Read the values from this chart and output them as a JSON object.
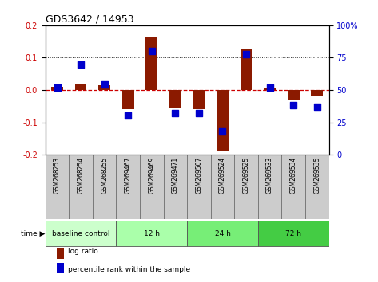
{
  "title": "GDS3642 / 14953",
  "samples": [
    "GSM268253",
    "GSM268254",
    "GSM268255",
    "GSM269467",
    "GSM269469",
    "GSM269471",
    "GSM269507",
    "GSM269524",
    "GSM269525",
    "GSM269533",
    "GSM269534",
    "GSM269535"
  ],
  "log_ratio": [
    0.01,
    0.02,
    0.015,
    -0.06,
    0.165,
    -0.055,
    -0.06,
    -0.19,
    0.125,
    0.005,
    -0.03,
    -0.02
  ],
  "percentile": [
    52,
    70,
    54,
    30,
    80,
    32,
    32,
    18,
    78,
    52,
    38,
    37
  ],
  "bar_color": "#8B1A00",
  "dot_color": "#0000CC",
  "ylim_left": [
    -0.2,
    0.2
  ],
  "ylim_right": [
    0,
    100
  ],
  "yticks_left": [
    -0.2,
    -0.1,
    0.0,
    0.1,
    0.2
  ],
  "yticks_right": [
    0,
    25,
    50,
    75,
    100
  ],
  "ytick_labels_right": [
    "0",
    "25",
    "50",
    "75",
    "100%"
  ],
  "hline_color": "#CC0000",
  "dotted_line_color": "#333333",
  "groups": [
    {
      "label": "baseline control",
      "start": 0,
      "end": 3,
      "color": "#ccffcc"
    },
    {
      "label": "12 h",
      "start": 3,
      "end": 6,
      "color": "#aaffaa"
    },
    {
      "label": "24 h",
      "start": 6,
      "end": 9,
      "color": "#77ee77"
    },
    {
      "label": "72 h",
      "start": 9,
      "end": 12,
      "color": "#44cc44"
    }
  ],
  "time_label": "time",
  "legend_items": [
    {
      "label": "log ratio",
      "color": "#8B1A00"
    },
    {
      "label": "percentile rank within the sample",
      "color": "#0000CC"
    }
  ],
  "bg_color": "#ffffff",
  "plot_bg_color": "#ffffff",
  "tick_label_color_left": "#CC0000",
  "tick_label_color_right": "#0000CC",
  "bar_width": 0.5,
  "dot_size": 28,
  "sample_box_color": "#cccccc",
  "sample_box_edge": "#666666"
}
